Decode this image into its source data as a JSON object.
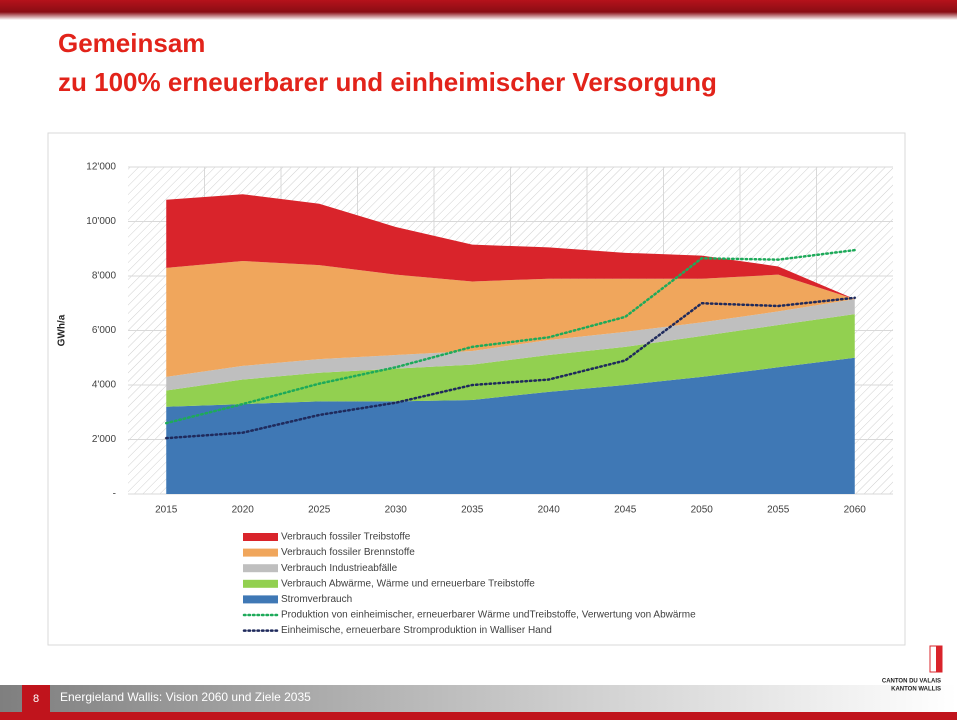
{
  "slide": {
    "title": [
      "Gemeinsam",
      "zu 100% erneuerbarer und einheimischer Versorgung"
    ],
    "footer": {
      "page": "8",
      "text": "Energieland Wallis: Vision 2060 und Ziele 2035"
    },
    "logo": [
      "CANTON DU VALAIS",
      "KANTON WALLIS"
    ]
  },
  "chart_data": {
    "type": "area",
    "ylabel": "GWh/a",
    "categories": [
      "2015",
      "2020",
      "2025",
      "2030",
      "2035",
      "2040",
      "2045",
      "2050",
      "2055",
      "2060"
    ],
    "ylim": [
      0,
      12000
    ],
    "yticks": [
      {
        "value": 0,
        "label": "-"
      },
      {
        "value": 2000,
        "label": "2'000"
      },
      {
        "value": 4000,
        "label": "4'000"
      },
      {
        "value": 6000,
        "label": "6'000"
      },
      {
        "value": 8000,
        "label": "8'000"
      },
      {
        "value": 10000,
        "label": "10'000"
      },
      {
        "value": 12000,
        "label": "12'000"
      }
    ],
    "grid": true,
    "series": [
      {
        "name": "Verbrauch fossiler Treibstoffe",
        "color": "#d9242b",
        "values": [
          2500,
          2450,
          2250,
          1750,
          1350,
          1150,
          950,
          850,
          300,
          0
        ]
      },
      {
        "name": "Verbrauch fossiler Brennstoffe",
        "color": "#f0a65c",
        "values": [
          4000,
          3850,
          3450,
          2950,
          2550,
          2250,
          1950,
          1600,
          1350,
          0
        ]
      },
      {
        "name": "Verbrauch Industrieabfälle",
        "color": "#bfbfbf",
        "values": [
          500,
          500,
          500,
          500,
          500,
          550,
          550,
          500,
          500,
          550
        ]
      },
      {
        "name": "Verbrauch Abwärme, Wärme und erneuerbare Treibstoffe",
        "color": "#92d050",
        "values": [
          600,
          900,
          1050,
          1200,
          1300,
          1350,
          1400,
          1500,
          1550,
          1600
        ]
      },
      {
        "name": "Stromverbrauch",
        "color": "#3f78b5",
        "values": [
          3200,
          3300,
          3400,
          3400,
          3450,
          3750,
          4000,
          4300,
          4650,
          5000
        ]
      },
      {
        "name": "Produktion von einheimischer, erneuerbarer  Wärme undTreibstoffe, Verwertung von Abwärme",
        "color": "#1eaa5a",
        "type": "line",
        "dash": "dotted",
        "values": [
          2600,
          3300,
          4050,
          4650,
          5400,
          5750,
          6500,
          8650,
          8600,
          8950
        ]
      },
      {
        "name": "Einheimische, erneuerbare Stromproduktion in Walliser Hand",
        "color": "#1f2a5c",
        "type": "line",
        "dash": "dotted",
        "values": [
          2050,
          2250,
          2900,
          3350,
          4000,
          4200,
          4900,
          7000,
          6900,
          7200
        ]
      }
    ]
  }
}
